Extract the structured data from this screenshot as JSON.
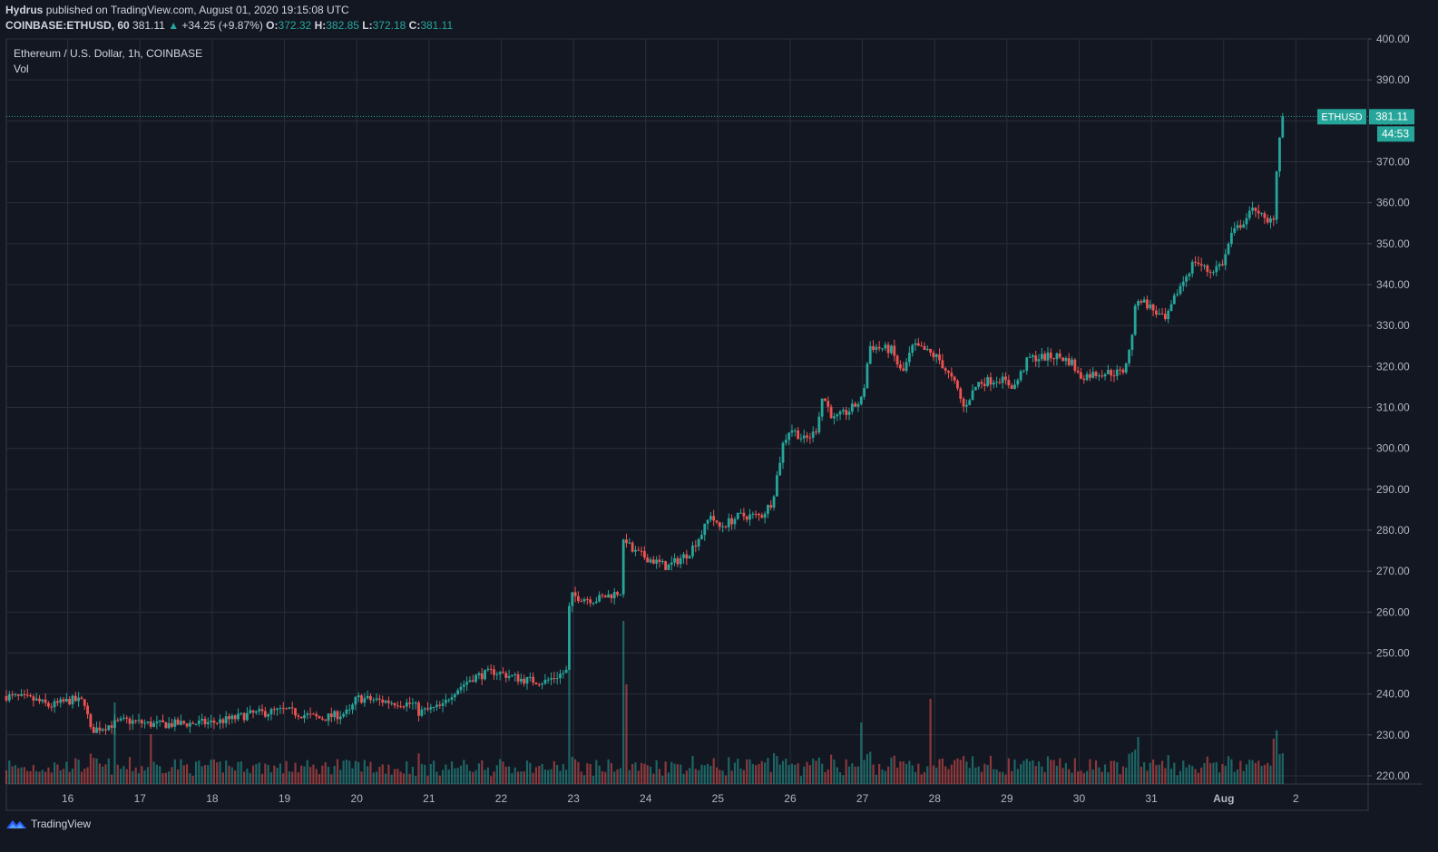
{
  "header": {
    "author": "Hydrus",
    "published_text": "published on TradingView.com, August 01, 2020 19:15:08 UTC",
    "symbol": "COINBASE:ETHUSD, 60",
    "last": "381.11",
    "change_arrow": "▲",
    "change": "+34.25 (+9.87%)",
    "o_label": "O:",
    "o_value": "372.32",
    "h_label": "H:",
    "h_value": "382.85",
    "l_label": "L:",
    "l_value": "372.18",
    "c_label": "C:",
    "c_value": "381.11"
  },
  "legend": {
    "title": "Ethereum / U.S. Dollar, 1h, COINBASE",
    "volume": "Vol"
  },
  "footer": {
    "brand": "TradingView",
    "icon": "tradingview-logo-icon"
  },
  "colors": {
    "up": "#26a69a",
    "down": "#ef5350",
    "background": "#131722",
    "grid": "#2a2e39"
  },
  "chart_data": {
    "type": "candlestick",
    "symbol_tag": "ETHUSD",
    "last_price_label": "381.11",
    "countdown_label": "44:53",
    "y_ticks": [
      "400.00",
      "390.00",
      "380.00",
      "370.00",
      "360.00",
      "350.00",
      "340.00",
      "330.00",
      "320.00",
      "310.00",
      "300.00",
      "290.00",
      "280.00",
      "270.00",
      "260.00",
      "250.00",
      "240.00",
      "230.00",
      "220.00"
    ],
    "ylim": [
      218,
      400
    ],
    "x_ticks": [
      {
        "label": "16",
        "day": 16
      },
      {
        "label": "17",
        "day": 17
      },
      {
        "label": "18",
        "day": 18
      },
      {
        "label": "19",
        "day": 19
      },
      {
        "label": "20",
        "day": 20
      },
      {
        "label": "21",
        "day": 21
      },
      {
        "label": "22",
        "day": 22
      },
      {
        "label": "23",
        "day": 23
      },
      {
        "label": "24",
        "day": 24
      },
      {
        "label": "25",
        "day": 25
      },
      {
        "label": "26",
        "day": 26
      },
      {
        "label": "27",
        "day": 27
      },
      {
        "label": "28",
        "day": 28
      },
      {
        "label": "29",
        "day": 29
      },
      {
        "label": "30",
        "day": 30
      },
      {
        "label": "31",
        "day": 31
      },
      {
        "label": "Aug",
        "day": 32
      },
      {
        "label": "2",
        "day": 33
      }
    ],
    "xlim_days": [
      15.15,
      34.0
    ],
    "start_day": 15.15,
    "close_anchors": [
      [
        15.15,
        239.5
      ],
      [
        15.55,
        238.5
      ],
      [
        15.75,
        237.0
      ],
      [
        16.05,
        238.5
      ],
      [
        16.25,
        238.0
      ],
      [
        16.3,
        231.0
      ],
      [
        16.6,
        232.5
      ],
      [
        16.8,
        233.5
      ],
      [
        17.2,
        232.5
      ],
      [
        18.0,
        233.0
      ],
      [
        18.3,
        234.0
      ],
      [
        18.5,
        235.0
      ],
      [
        19.0,
        236.0
      ],
      [
        19.5,
        234.0
      ],
      [
        19.9,
        235.5
      ],
      [
        20.0,
        239.0
      ],
      [
        20.5,
        238.0
      ],
      [
        20.8,
        237.5
      ],
      [
        20.85,
        235.5
      ],
      [
        21.2,
        237.0
      ],
      [
        21.3,
        240.0
      ],
      [
        21.6,
        244.0
      ],
      [
        21.9,
        245.5
      ],
      [
        22.3,
        243.5
      ],
      [
        22.6,
        243.0
      ],
      [
        22.9,
        245.5
      ],
      [
        22.95,
        264.0
      ],
      [
        23.3,
        263.0
      ],
      [
        23.65,
        265.0
      ],
      [
        23.7,
        279.0
      ],
      [
        23.8,
        275.0
      ],
      [
        24.3,
        271.0
      ],
      [
        24.6,
        274.5
      ],
      [
        24.8,
        280.0
      ],
      [
        24.9,
        284.0
      ],
      [
        25.0,
        280.5
      ],
      [
        25.3,
        283.5
      ],
      [
        25.6,
        283.5
      ],
      [
        25.75,
        287.0
      ],
      [
        25.9,
        301.0
      ],
      [
        26.0,
        305.0
      ],
      [
        26.2,
        302.0
      ],
      [
        26.35,
        304.0
      ],
      [
        26.45,
        313.0
      ],
      [
        26.6,
        307.0
      ],
      [
        26.8,
        309.0
      ],
      [
        27.0,
        312.0
      ],
      [
        27.1,
        325.0
      ],
      [
        27.4,
        324.0
      ],
      [
        27.55,
        318.0
      ],
      [
        27.7,
        325.0
      ],
      [
        27.85,
        324.0
      ],
      [
        28.05,
        322.0
      ],
      [
        28.3,
        315.0
      ],
      [
        28.4,
        310.0
      ],
      [
        28.6,
        316.0
      ],
      [
        28.9,
        317.0
      ],
      [
        29.1,
        315.0
      ],
      [
        29.3,
        322.0
      ],
      [
        29.7,
        322.5
      ],
      [
        29.9,
        321.0
      ],
      [
        30.0,
        317.5
      ],
      [
        30.3,
        318.5
      ],
      [
        30.6,
        318.5
      ],
      [
        30.7,
        324.0
      ],
      [
        30.8,
        337.0
      ],
      [
        30.95,
        335.0
      ],
      [
        31.2,
        331.0
      ],
      [
        31.35,
        338.0
      ],
      [
        31.6,
        346.0
      ],
      [
        31.8,
        343.0
      ],
      [
        32.0,
        345.5
      ],
      [
        32.1,
        352.0
      ],
      [
        32.3,
        356.0
      ],
      [
        32.45,
        359.0
      ],
      [
        32.6,
        354.5
      ],
      [
        32.7,
        357.0
      ],
      [
        32.72,
        364.0
      ],
      [
        32.75,
        372.5
      ],
      [
        32.8,
        381.11
      ]
    ],
    "volume_scale": [
      0,
      300
    ],
    "volume_spikes": [
      {
        "day": 16.65,
        "volume": 90
      },
      {
        "day": 17.15,
        "volume": 55
      },
      {
        "day": 22.95,
        "volume": 168
      },
      {
        "day": 23.7,
        "volume": 180
      },
      {
        "day": 23.75,
        "volume": 110
      },
      {
        "day": 27.0,
        "volume": 68
      },
      {
        "day": 27.95,
        "volume": 94
      },
      {
        "day": 30.8,
        "volume": 52
      },
      {
        "day": 32.7,
        "volume": 50
      }
    ],
    "last_price": 381.11
  }
}
